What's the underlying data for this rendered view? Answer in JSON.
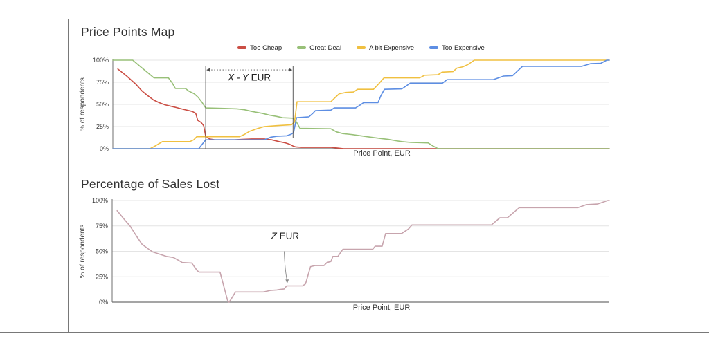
{
  "page": {
    "title1": "Price Points Map",
    "title2": "Percentage of Sales Lost"
  },
  "legend": [
    {
      "label": "Too Cheap",
      "color": "#cb4e44"
    },
    {
      "label": "Great Deal",
      "color": "#98c078"
    },
    {
      "label": "A bit Expensive",
      "color": "#f0c040"
    },
    {
      "label": "Too Expensive",
      "color": "#5d8ee3"
    }
  ],
  "chart_data": [
    {
      "type": "line",
      "title": "Price Points Map",
      "xlabel": "Price Point, EUR",
      "ylabel": "% of respondents",
      "xlim": [
        0,
        100
      ],
      "ylim": [
        0,
        100
      ],
      "grid": true,
      "legend_position": "top",
      "ytick_values": [
        100,
        75,
        50,
        25,
        0
      ],
      "ytick_labels": [
        "100%",
        "75%",
        "50%",
        "25%",
        "0%"
      ],
      "annotation": {
        "type": "range",
        "label_var": "X - Y",
        "label_unit": "EUR",
        "x_from": 18.7,
        "x_to": 36.3,
        "line_y": 89,
        "label_y": 77,
        "from_bottom": 0,
        "to_bottom": 12
      },
      "series": [
        {
          "name": "Too Cheap",
          "color": "#cb4e44",
          "points": [
            [
              1,
              90
            ],
            [
              2.8,
              82
            ],
            [
              4.6,
              73
            ],
            [
              5.9,
              65
            ],
            [
              7,
              60
            ],
            [
              8.2,
              55
            ],
            [
              9.3,
              52
            ],
            [
              10.5,
              49.5
            ],
            [
              12.4,
              47
            ],
            [
              13.8,
              45
            ],
            [
              14.9,
              43.5
            ],
            [
              16,
              42
            ],
            [
              16.7,
              40
            ],
            [
              17.1,
              32
            ],
            [
              17.8,
              29.5
            ],
            [
              18.3,
              26
            ],
            [
              18.7,
              14
            ],
            [
              19.5,
              11
            ],
            [
              20.5,
              10
            ],
            [
              24.5,
              10
            ],
            [
              26,
              10.5
            ],
            [
              28,
              11
            ],
            [
              30.5,
              11
            ],
            [
              32,
              10
            ],
            [
              33.5,
              8
            ],
            [
              34.8,
              6.5
            ],
            [
              35.6,
              5
            ],
            [
              36.3,
              3
            ],
            [
              36.8,
              2
            ],
            [
              38,
              1.5
            ],
            [
              44,
              1.5
            ],
            [
              46.5,
              0
            ],
            [
              100,
              0
            ]
          ]
        },
        {
          "name": "Great Deal",
          "color": "#98c078",
          "points": [
            [
              0,
              100
            ],
            [
              4,
              100
            ],
            [
              5.5,
              93
            ],
            [
              7,
              86
            ],
            [
              8.3,
              80
            ],
            [
              11.2,
              80
            ],
            [
              12,
              74
            ],
            [
              12.6,
              68
            ],
            [
              14.6,
              68
            ],
            [
              15.3,
              65
            ],
            [
              16.4,
              62
            ],
            [
              17.2,
              58
            ],
            [
              18,
              52
            ],
            [
              18.7,
              46
            ],
            [
              22.5,
              45.5
            ],
            [
              25,
              45
            ],
            [
              26.5,
              44
            ],
            [
              28,
              42
            ],
            [
              30,
              40
            ],
            [
              31.5,
              38
            ],
            [
              33,
              36.5
            ],
            [
              34.2,
              35
            ],
            [
              36.3,
              34.5
            ],
            [
              37,
              30
            ],
            [
              37.7,
              23
            ],
            [
              43.9,
              22.5
            ],
            [
              45,
              19
            ],
            [
              46.3,
              17
            ],
            [
              48,
              16
            ],
            [
              50,
              14.5
            ],
            [
              52,
              13
            ],
            [
              54,
              11.5
            ],
            [
              55.5,
              10.5
            ],
            [
              57,
              9
            ],
            [
              58.2,
              8
            ],
            [
              60,
              7
            ],
            [
              63.5,
              6.5
            ],
            [
              64.5,
              3
            ],
            [
              65.5,
              0
            ],
            [
              100,
              0
            ]
          ]
        },
        {
          "name": "A bit Expensive",
          "color": "#f0c040",
          "points": [
            [
              0,
              0
            ],
            [
              7.5,
              0
            ],
            [
              8.5,
              3
            ],
            [
              10,
              8
            ],
            [
              15.5,
              8
            ],
            [
              16.3,
              10
            ],
            [
              16.9,
              13.5
            ],
            [
              25.5,
              13.5
            ],
            [
              26.5,
              16
            ],
            [
              27.5,
              19.5
            ],
            [
              29,
              22.5
            ],
            [
              30.5,
              25
            ],
            [
              33,
              26
            ],
            [
              34.5,
              26.5
            ],
            [
              36,
              27
            ],
            [
              36.6,
              30
            ],
            [
              37.1,
              53
            ],
            [
              43.9,
              53
            ],
            [
              45,
              59
            ],
            [
              45.6,
              62
            ],
            [
              47,
              63.5
            ],
            [
              48.5,
              64
            ],
            [
              49.3,
              67
            ],
            [
              52.5,
              67
            ],
            [
              53.5,
              73
            ],
            [
              54.6,
              80
            ],
            [
              61.8,
              80
            ],
            [
              62.8,
              83
            ],
            [
              65.5,
              83.5
            ],
            [
              66.3,
              86.5
            ],
            [
              68.5,
              87
            ],
            [
              69.3,
              91
            ],
            [
              70.5,
              92.5
            ],
            [
              71.5,
              95
            ],
            [
              72.8,
              100
            ],
            [
              100,
              100
            ]
          ]
        },
        {
          "name": "Too Expensive",
          "color": "#5d8ee3",
          "points": [
            [
              0,
              0
            ],
            [
              17.3,
              0
            ],
            [
              18.7,
              10
            ],
            [
              30.5,
              10
            ],
            [
              31.8,
              13
            ],
            [
              33,
              14
            ],
            [
              35,
              14.5
            ],
            [
              35.8,
              16
            ],
            [
              36.4,
              18
            ],
            [
              37,
              35
            ],
            [
              39.5,
              36
            ],
            [
              40.3,
              40
            ],
            [
              40.8,
              43
            ],
            [
              43.9,
              43.5
            ],
            [
              44.6,
              46
            ],
            [
              48.9,
              46
            ],
            [
              50,
              50
            ],
            [
              50.5,
              52
            ],
            [
              53.4,
              52
            ],
            [
              54,
              60
            ],
            [
              54.7,
              67
            ],
            [
              58.2,
              67.5
            ],
            [
              59.9,
              74
            ],
            [
              66.4,
              74
            ],
            [
              67.3,
              78
            ],
            [
              76.6,
              78
            ],
            [
              78.7,
              82
            ],
            [
              80.5,
              82.5
            ],
            [
              82.5,
              93
            ],
            [
              94.4,
              93
            ],
            [
              96.2,
              96
            ],
            [
              98.3,
              96.5
            ],
            [
              99.5,
              100
            ],
            [
              100,
              100
            ]
          ]
        }
      ]
    },
    {
      "type": "line",
      "title": "Percentage of Sales Lost",
      "xlabel": "Price Point, EUR",
      "ylabel": "% of respondents",
      "xlim": [
        0,
        100
      ],
      "ylim": [
        0,
        100
      ],
      "grid": true,
      "legend_position": "none",
      "ytick_values": [
        100,
        75,
        50,
        25,
        0
      ],
      "ytick_labels": [
        "100%",
        "75%",
        "50%",
        "25%",
        "0%"
      ],
      "annotation": {
        "type": "point",
        "label_var": "Z",
        "label_unit": "EUR",
        "label_x": 34.8,
        "label_y": 62,
        "tip_x": 35.2,
        "tip_y": 18.5,
        "tail_x": 34.6,
        "tail_y": 50
      },
      "series": [
        {
          "name": "Sales Lost",
          "color": "#c7a4ad",
          "points": [
            [
              1,
              90
            ],
            [
              2.5,
              81
            ],
            [
              3.6,
              75
            ],
            [
              4.9,
              65
            ],
            [
              6,
              57
            ],
            [
              7.1,
              53
            ],
            [
              8.1,
              49.5
            ],
            [
              10.9,
              45
            ],
            [
              12.3,
              44
            ],
            [
              13.4,
              41
            ],
            [
              14.1,
              39
            ],
            [
              16,
              38.5
            ],
            [
              17.1,
              31
            ],
            [
              17.5,
              29.5
            ],
            [
              21.7,
              29.5
            ],
            [
              23.2,
              2
            ],
            [
              23.5,
              0
            ],
            [
              23.8,
              2
            ],
            [
              24.8,
              10
            ],
            [
              30.4,
              10
            ],
            [
              31.8,
              11.5
            ],
            [
              33.1,
              12
            ],
            [
              33.8,
              12.5
            ],
            [
              34.6,
              13
            ],
            [
              35.1,
              16
            ],
            [
              38.3,
              16
            ],
            [
              38.9,
              18
            ],
            [
              39.9,
              35
            ],
            [
              40.8,
              36
            ],
            [
              42.6,
              36
            ],
            [
              43.2,
              39
            ],
            [
              44,
              40
            ],
            [
              44.4,
              45
            ],
            [
              45.4,
              45
            ],
            [
              46.4,
              52
            ],
            [
              52.4,
              52
            ],
            [
              52.9,
              55
            ],
            [
              54.3,
              55
            ],
            [
              55,
              67.5
            ],
            [
              58.2,
              67.5
            ],
            [
              59.6,
              72
            ],
            [
              60.3,
              76
            ],
            [
              76.3,
              76
            ],
            [
              78,
              83
            ],
            [
              79.5,
              83
            ],
            [
              81.9,
              93
            ],
            [
              93.7,
              93
            ],
            [
              95.4,
              96
            ],
            [
              97.6,
              96.5
            ],
            [
              99.7,
              100
            ],
            [
              100,
              100
            ]
          ]
        }
      ]
    }
  ]
}
